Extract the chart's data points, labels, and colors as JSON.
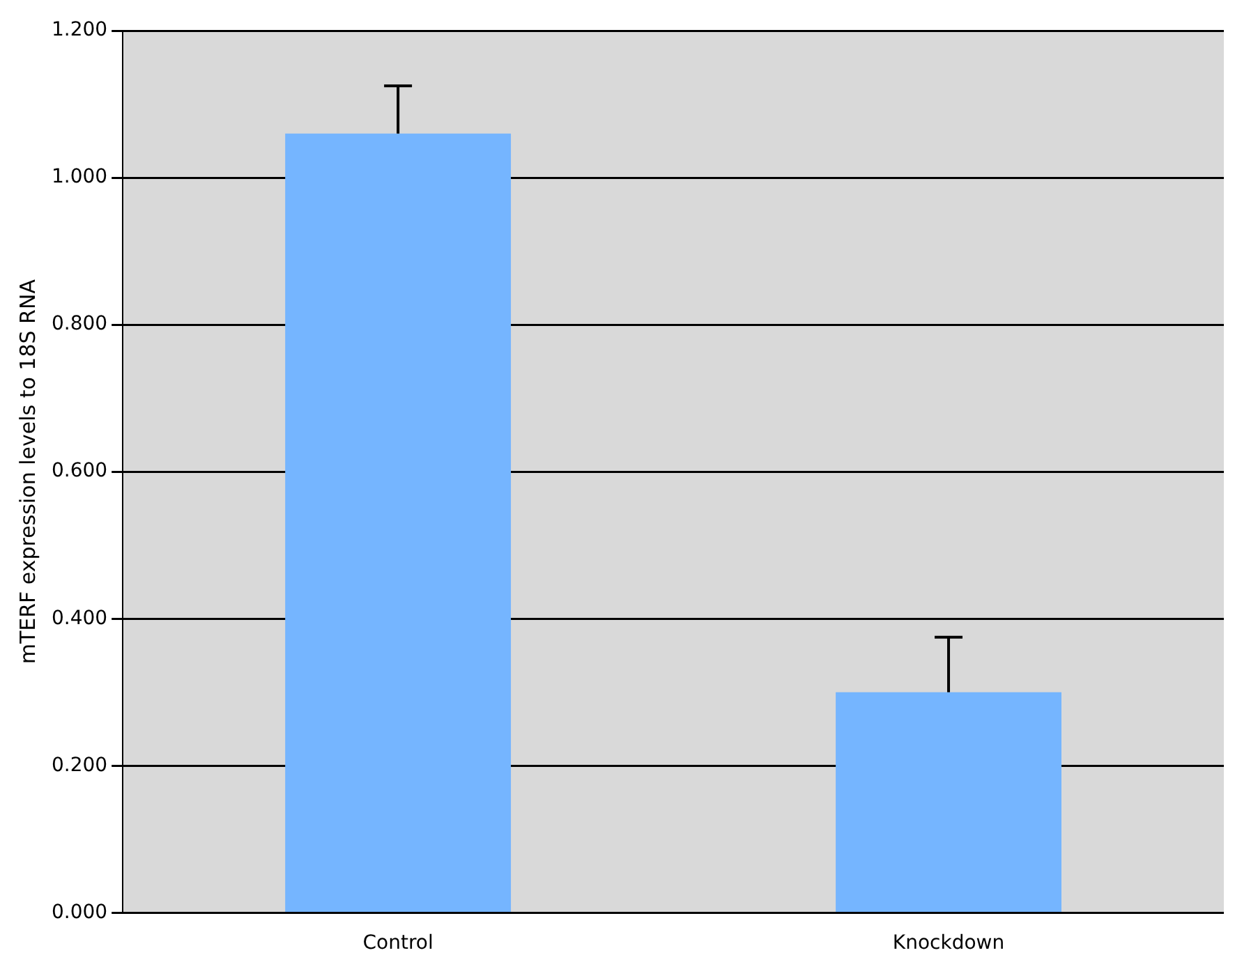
{
  "chart_data": {
    "type": "bar",
    "ylabel": "mTERF expression levels to 18S RNA",
    "categories": [
      "Control",
      "Knockdown"
    ],
    "values": [
      1.06,
      0.3
    ],
    "errors": [
      0.065,
      0.075
    ],
    "color": "#75b5ff",
    "ylim": [
      0,
      1.2
    ],
    "yticks": [
      {
        "value": 0,
        "label": "0.000"
      },
      {
        "value": 0.2,
        "label": "0.200"
      },
      {
        "value": 0.4,
        "label": "0.400"
      },
      {
        "value": 0.6,
        "label": "0.600"
      },
      {
        "value": 0.8,
        "label": "0.800"
      },
      {
        "value": 1,
        "label": "1.000"
      },
      {
        "value": 1.2,
        "label": "1.200"
      }
    ],
    "grid": "y",
    "legend": false
  }
}
